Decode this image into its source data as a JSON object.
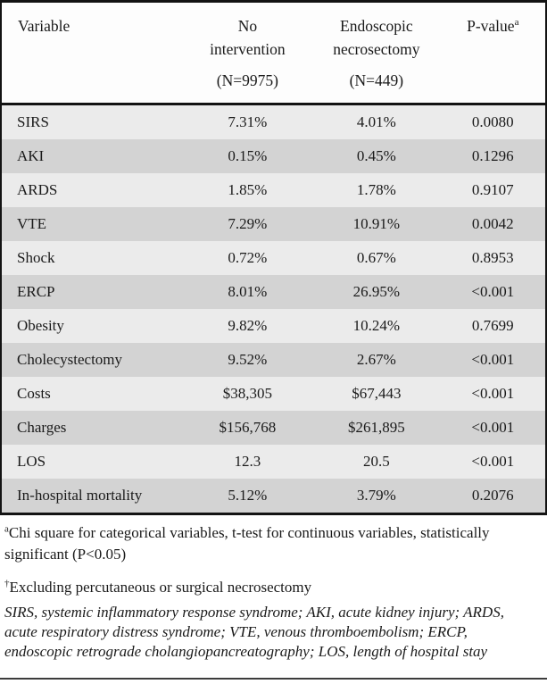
{
  "colors": {
    "border": "#131313",
    "row_light": "#ebebeb",
    "row_dark": "#d3d3d3",
    "header_bg": "#fdfdfd",
    "text": "#1a1a1a"
  },
  "table": {
    "header": {
      "variable": "Variable",
      "no_intervention_line1": "No",
      "no_intervention_line2": "intervention",
      "no_intervention_n": "(N=9975)",
      "endoscopic_line1": "Endoscopic",
      "endoscopic_line2": "necrosectomy",
      "endoscopic_n": "(N=449)",
      "p_value": "P-value",
      "p_value_marker": "a"
    },
    "rows": [
      {
        "variable": "SIRS",
        "no_intervention": "7.31%",
        "endoscopic": "4.01%",
        "p": "0.0080"
      },
      {
        "variable": "AKI",
        "no_intervention": "0.15%",
        "endoscopic": "0.45%",
        "p": "0.1296"
      },
      {
        "variable": "ARDS",
        "no_intervention": "1.85%",
        "endoscopic": "1.78%",
        "p": "0.9107"
      },
      {
        "variable": "VTE",
        "no_intervention": "7.29%",
        "endoscopic": "10.91%",
        "p": "0.0042"
      },
      {
        "variable": "Shock",
        "no_intervention": "0.72%",
        "endoscopic": "0.67%",
        "p": "0.8953"
      },
      {
        "variable": "ERCP",
        "no_intervention": "8.01%",
        "endoscopic": "26.95%",
        "p": "<0.001"
      },
      {
        "variable": "Obesity",
        "no_intervention": "9.82%",
        "endoscopic": "10.24%",
        "p": "0.7699"
      },
      {
        "variable": "Cholecystectomy",
        "no_intervention": "9.52%",
        "endoscopic": "2.67%",
        "p": "<0.001"
      },
      {
        "variable": "Costs",
        "no_intervention": "$38,305",
        "endoscopic": "$67,443",
        "p": "<0.001"
      },
      {
        "variable": "Charges",
        "no_intervention": "$156,768",
        "endoscopic": "$261,895",
        "p": "<0.001"
      },
      {
        "variable": "LOS",
        "no_intervention": "12.3",
        "endoscopic": "20.5",
        "p": "<0.001"
      },
      {
        "variable": "In-hospital mortality",
        "no_intervention": "5.12%",
        "endoscopic": "3.79%",
        "p": "0.2076"
      }
    ]
  },
  "footnotes": {
    "a_marker": "a",
    "a_text": "Chi square for categorical variables, t-test for continuous variables, statistically significant (P<0.05)",
    "dagger_marker": "†",
    "dagger_text": "Excluding percutaneous or surgical necrosectomy",
    "abbreviations": "SIRS, systemic inflammatory response syndrome; AKI, acute kidney injury; ARDS, acute respiratory distress syndrome; VTE, venous thromboembolism; ERCP, endoscopic retrograde cholangiopancreatography; LOS, length of hospital stay"
  }
}
